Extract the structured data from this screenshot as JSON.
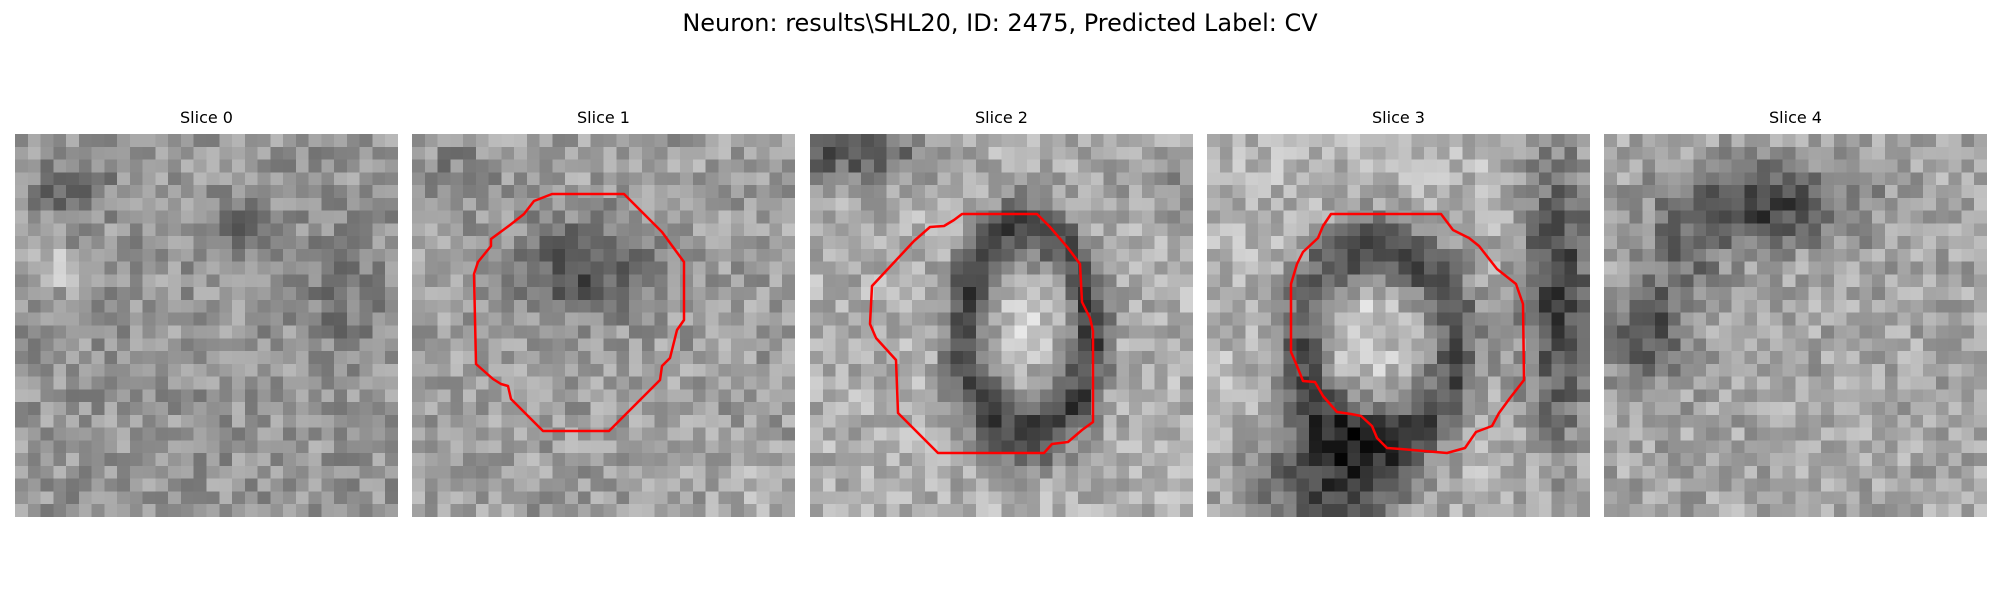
{
  "figure": {
    "title": "Neuron: results\\SHL20, ID: 2475, Predicted Label: CV"
  },
  "slices": [
    {
      "title": "Slice 0"
    },
    {
      "title": "Slice 1"
    },
    {
      "title": "Slice 2"
    },
    {
      "title": "Slice 3"
    },
    {
      "title": "Slice 4"
    }
  ],
  "colors": {
    "contour": "#ff0000",
    "colormap": "gray"
  }
}
